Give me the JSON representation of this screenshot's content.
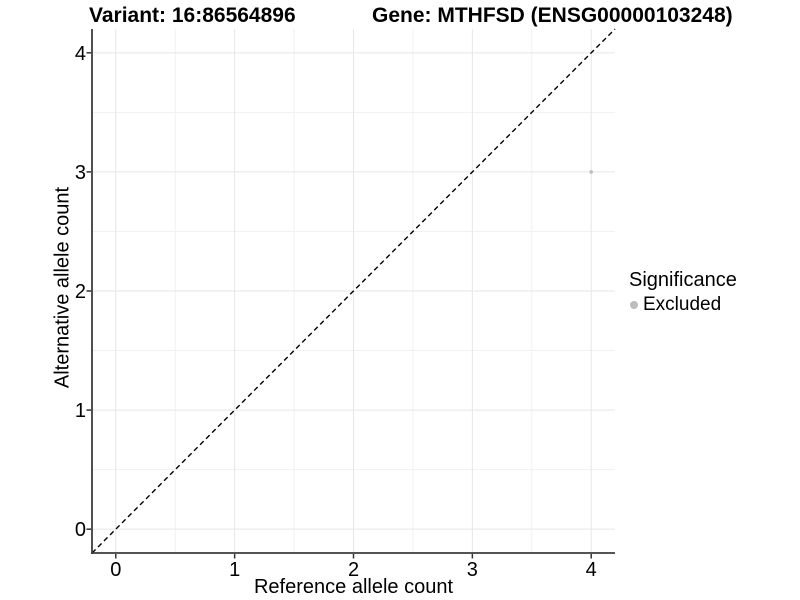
{
  "chart_data": {
    "type": "scatter",
    "titles": {
      "left": "Variant: 16:86564896",
      "right": "Gene: MTHFSD (ENSG00000103248)"
    },
    "xlabel": "Reference allele count",
    "ylabel": "Alternative allele count",
    "xlim": [
      -0.2,
      4.2
    ],
    "ylim": [
      -0.2,
      4.2
    ],
    "xticks": [
      0,
      1,
      2,
      3,
      4
    ],
    "yticks": [
      0,
      1,
      2,
      3,
      4
    ],
    "minor_xticks": [
      0.5,
      1.5,
      2.5,
      3.5
    ],
    "minor_yticks": [
      0.5,
      1.5,
      2.5,
      3.5
    ],
    "grid": true,
    "points": [
      {
        "x": 4,
        "y": 3,
        "series": "Excluded"
      }
    ],
    "identity_line": {
      "style": "dashed",
      "from": [
        -0.2,
        -0.2
      ],
      "to": [
        4.2,
        4.2
      ],
      "color": "#000000"
    },
    "legend": {
      "title": "Significance",
      "position": "right",
      "entries": [
        {
          "label": "Excluded",
          "color": "#bdbdbd"
        }
      ]
    },
    "colors": {
      "point": "#bdbdbd",
      "grid_major": "#e6e6e6",
      "grid_minor": "#f1f1f1",
      "axis_line": "#3c3c3c",
      "tick_mark": "#333333",
      "background": "#ffffff"
    }
  }
}
